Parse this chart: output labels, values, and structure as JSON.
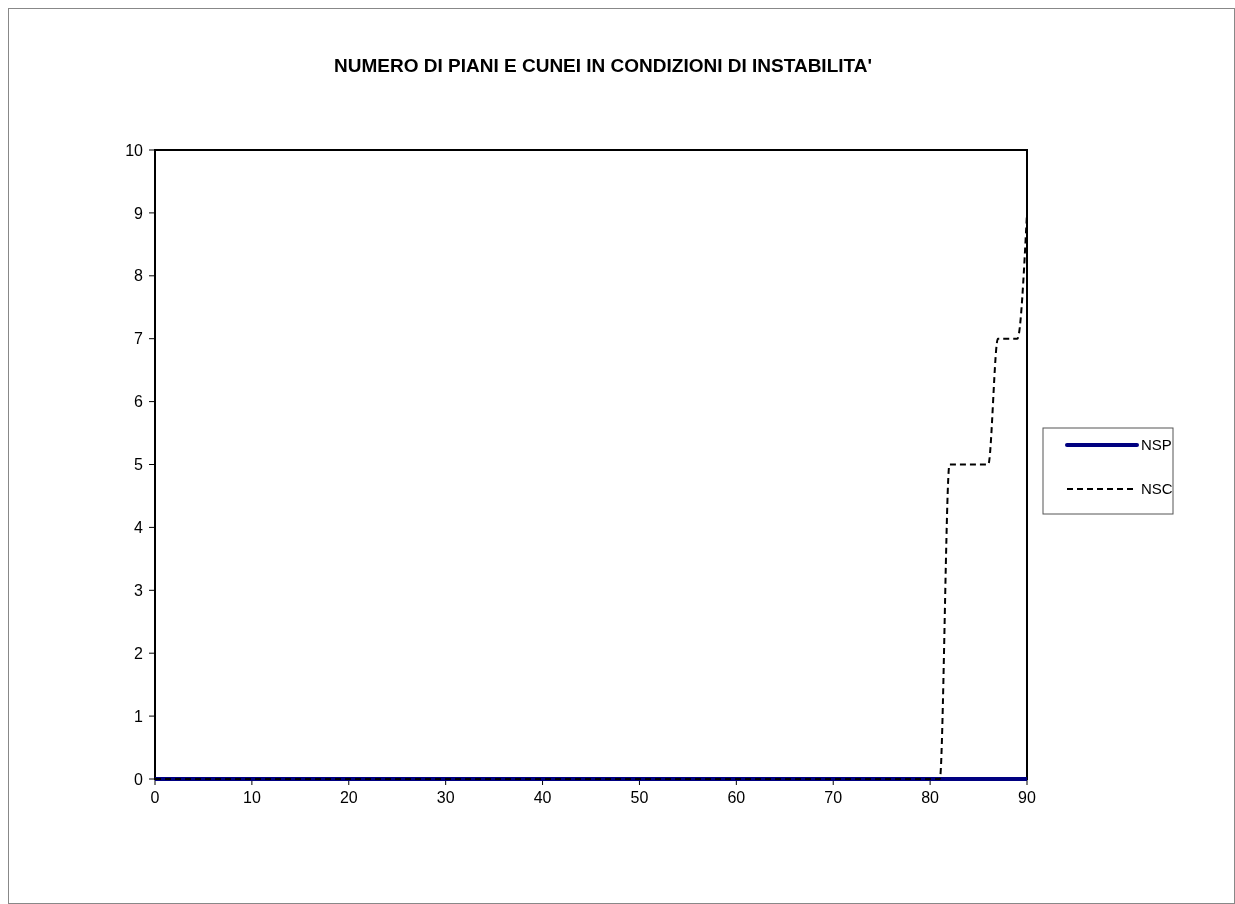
{
  "chart_data": {
    "type": "line",
    "title": "NUMERO DI PIANI E CUNEI IN CONDIZIONI DI INSTABILITA'",
    "xlim": [
      0,
      90
    ],
    "xticks": [
      0,
      10,
      20,
      30,
      40,
      50,
      60,
      70,
      80,
      90
    ],
    "ylim": [
      0,
      10
    ],
    "yticks": [
      0,
      1,
      2,
      3,
      4,
      5,
      6,
      7,
      8,
      9,
      10
    ],
    "legend": "right",
    "grid": false,
    "series": [
      {
        "name": "NSP",
        "color": "#000080",
        "x": [
          0,
          90
        ],
        "values": [
          0,
          0
        ],
        "line_style": "solid"
      },
      {
        "name": "NSC",
        "color": "#000000",
        "x": [
          0,
          81,
          82,
          86,
          87,
          89,
          90
        ],
        "values": [
          0,
          0,
          5,
          5,
          7,
          7,
          9
        ],
        "line_style": "dashed"
      }
    ]
  }
}
